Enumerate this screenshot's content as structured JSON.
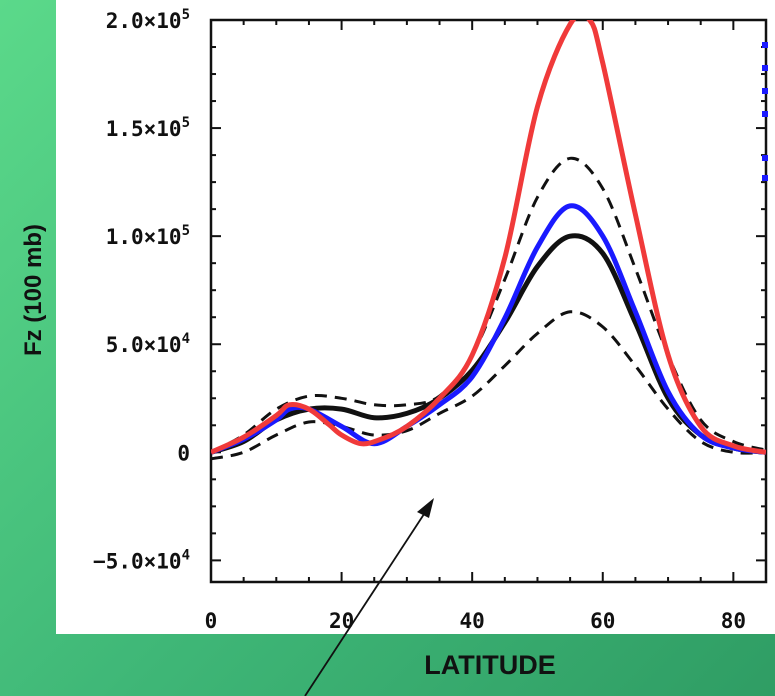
{
  "chart_data": {
    "type": "line",
    "xlabel": "LATITUDE",
    "ylabel": "Fz (100 mb)",
    "xlim": [
      0,
      85
    ],
    "ylim": [
      -60000,
      200000
    ],
    "x_ticks": [
      0,
      20,
      40,
      60,
      80
    ],
    "x_tick_labels": [
      "0",
      "20",
      "40",
      "60",
      "80"
    ],
    "y_ticks": [
      {
        "value": 200000,
        "mant": "2.0×10",
        "exp": "5"
      },
      {
        "value": 150000,
        "mant": "1.5×10",
        "exp": "5"
      },
      {
        "value": 100000,
        "mant": "1.0×10",
        "exp": "5"
      },
      {
        "value": 50000,
        "mant": "5.0×10",
        "exp": "4"
      },
      {
        "value": 0,
        "mant": "0",
        "exp": ""
      },
      {
        "value": -50000,
        "mant": "−5.0×10",
        "exp": "4"
      }
    ],
    "grid": false,
    "legend": "none",
    "series": [
      {
        "color": "#111111",
        "style": "dashed",
        "x": [
          0,
          5,
          10,
          15,
          20,
          25,
          30,
          35,
          40,
          45,
          50,
          55,
          60,
          65,
          70,
          75,
          80,
          85
        ],
        "y": [
          0,
          8000,
          20000,
          26000,
          25000,
          22000,
          22000,
          26000,
          45000,
          80000,
          118000,
          136000,
          122000,
          85000,
          45000,
          15000,
          5000,
          1000
        ]
      },
      {
        "color": "#111111",
        "style": "dashed",
        "x": [
          0,
          5,
          10,
          15,
          20,
          25,
          30,
          35,
          40,
          45,
          50,
          55,
          60,
          65,
          70,
          75,
          80,
          85
        ],
        "y": [
          -3000,
          0,
          8000,
          14000,
          12000,
          8000,
          10000,
          18000,
          26000,
          40000,
          55000,
          65000,
          58000,
          40000,
          20000,
          5000,
          0,
          0
        ]
      },
      {
        "color": "#111111",
        "style": "solid",
        "x": [
          0,
          5,
          10,
          15,
          20,
          25,
          30,
          35,
          40,
          45,
          50,
          55,
          60,
          65,
          70,
          75,
          80,
          85
        ],
        "y": [
          0,
          5000,
          15000,
          20000,
          20000,
          16000,
          18000,
          25000,
          38000,
          60000,
          86000,
          100000,
          92000,
          60000,
          25000,
          8000,
          2000,
          0
        ]
      },
      {
        "color": "#1a1aff",
        "style": "solid",
        "x": [
          0,
          5,
          10,
          12,
          15,
          20,
          25,
          30,
          35,
          40,
          45,
          50,
          55,
          60,
          65,
          70,
          75,
          80,
          85
        ],
        "y": [
          0,
          6000,
          15000,
          20000,
          20000,
          12000,
          4000,
          12000,
          22000,
          35000,
          62000,
          95000,
          114000,
          100000,
          65000,
          28000,
          8000,
          2000,
          0
        ]
      },
      {
        "color": "#f03a3a",
        "style": "solid",
        "x": [
          0,
          5,
          10,
          12,
          15,
          18,
          20,
          23,
          26,
          30,
          35,
          40,
          45,
          50,
          55,
          58,
          60,
          65,
          70,
          75,
          80,
          85
        ],
        "y": [
          0,
          7000,
          17000,
          22000,
          20000,
          13000,
          8000,
          4000,
          6000,
          12000,
          25000,
          45000,
          90000,
          160000,
          198000,
          200000,
          180000,
          110000,
          45000,
          12000,
          3000,
          0
        ]
      }
    ]
  },
  "annotation": {
    "arrow_color": "#111111"
  }
}
